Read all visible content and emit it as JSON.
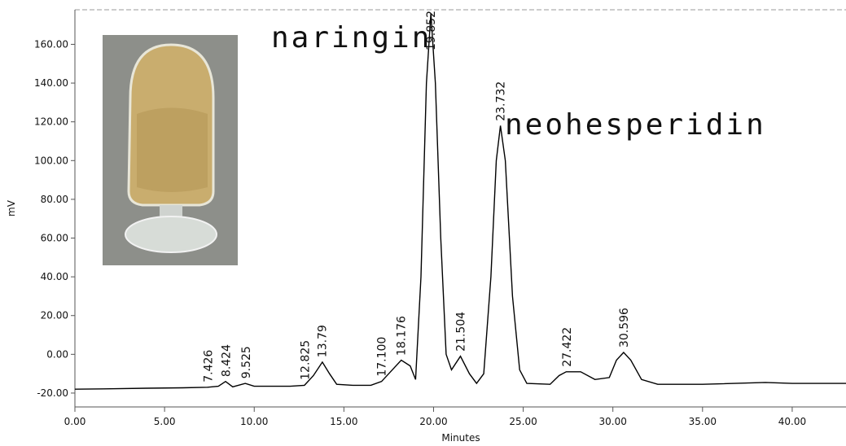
{
  "chart_data": {
    "type": "line",
    "x": [
      0,
      2,
      4,
      6,
      7.4,
      8.0,
      8.4,
      8.8,
      9.5,
      10,
      12,
      12.8,
      13.3,
      13.8,
      14.2,
      14.6,
      15.5,
      16.5,
      17.1,
      17.6,
      18.2,
      18.7,
      19.0,
      19.3,
      19.6,
      19.85,
      20.1,
      20.4,
      20.7,
      21.0,
      21.5,
      22.0,
      22.4,
      22.8,
      23.2,
      23.5,
      23.73,
      24.0,
      24.4,
      24.8,
      25.2,
      26.5,
      27.0,
      27.4,
      28.2,
      29.0,
      29.8,
      30.2,
      30.6,
      31.0,
      31.6,
      32.5,
      35,
      38.5,
      40,
      43
    ],
    "y": [
      -18,
      -17.8,
      -17.5,
      -17.3,
      -17,
      -16.5,
      -14,
      -16.8,
      -15,
      -16.5,
      -16.5,
      -16,
      -11,
      -4,
      -10,
      -15.5,
      -16,
      -16,
      -14,
      -9,
      -3,
      -6,
      -13,
      40,
      140,
      176,
      140,
      60,
      0,
      -8,
      -1,
      -10,
      -15,
      -10,
      40,
      100,
      118,
      100,
      30,
      -8,
      -15,
      -15.5,
      -11,
      -9,
      -9,
      -13,
      -12,
      -3,
      1,
      -3,
      -13,
      -15.5,
      -15.5,
      -14.5,
      -15,
      -15
    ],
    "color": "#000000",
    "xlim": [
      0,
      43
    ],
    "ylim": [
      -28,
      177
    ],
    "xticks": [
      {
        "value": 0,
        "label": "0.00"
      },
      {
        "value": 5,
        "label": "5.00"
      },
      {
        "value": 10,
        "label": "10.00"
      },
      {
        "value": 15,
        "label": "15.00"
      },
      {
        "value": 20,
        "label": "20.00"
      },
      {
        "value": 25,
        "label": "25.00"
      },
      {
        "value": 30,
        "label": "30.00"
      },
      {
        "value": 35,
        "label": "35.00"
      },
      {
        "value": 40,
        "label": "40.00"
      }
    ],
    "yticks": [
      {
        "value": -20,
        "label": "-20.00"
      },
      {
        "value": 0,
        "label": "0.00"
      },
      {
        "value": 20,
        "label": "20.00"
      },
      {
        "value": 40,
        "label": "40.00"
      },
      {
        "value": 60,
        "label": "60.00"
      },
      {
        "value": 80,
        "label": "80.00"
      },
      {
        "value": 100,
        "label": "100.00"
      },
      {
        "value": 120,
        "label": "120.00"
      },
      {
        "value": 140,
        "label": "140.00"
      },
      {
        "value": 160,
        "label": "160.00"
      }
    ],
    "x_label": "Minutes",
    "y_label": "mV",
    "peaks": [
      7.426,
      8.424,
      9.525,
      12.825,
      13.79,
      {
        "value": 17.1,
        "label": "17.100"
      },
      18.176,
      19.852,
      21.504,
      23.732,
      27.422,
      30.596
    ],
    "annotations": [
      "naringin",
      "neohesperidin"
    ]
  }
}
